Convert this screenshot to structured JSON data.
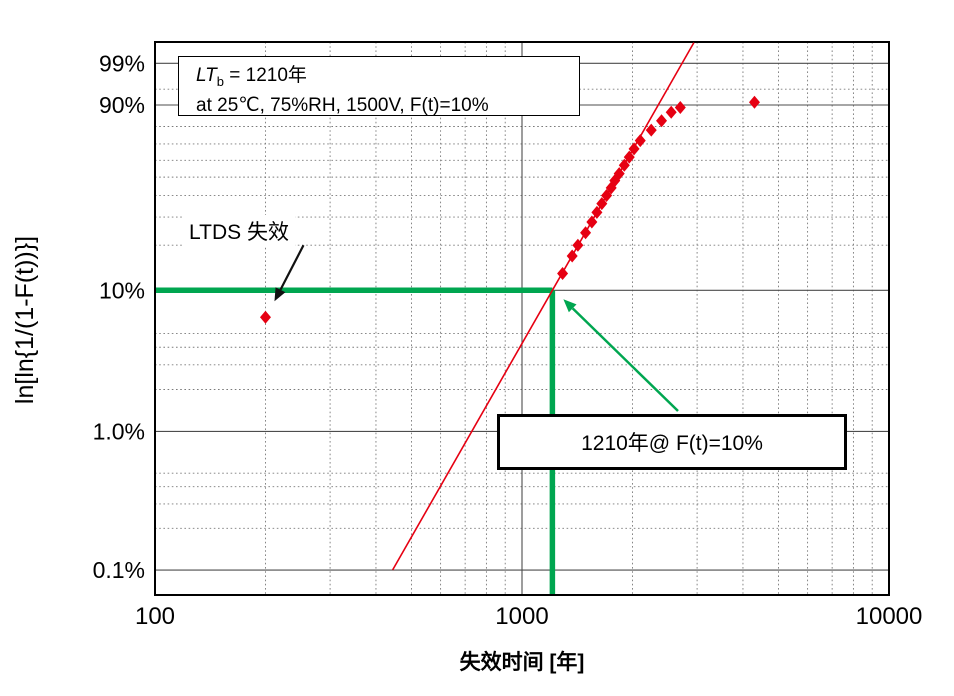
{
  "chart_data": {
    "type": "scatter",
    "title": "",
    "x_axis": {
      "label": "失效时间 [年]",
      "scale": "log",
      "min": 100,
      "max": 10000,
      "major_ticks": [
        100,
        1000,
        10000
      ],
      "tick_labels": [
        "100",
        "1000",
        "10000"
      ],
      "minor_gridlines": [
        200,
        300,
        400,
        500,
        600,
        700,
        800,
        900,
        2000,
        3000,
        4000,
        5000,
        6000,
        7000,
        8000,
        9000
      ]
    },
    "y_axis": {
      "label": "ln[ln{1/(1-F(t))}]",
      "scale": "weibull-percent",
      "render_min_percent": 0.066,
      "render_max_percent": 99.86,
      "major_ticks_percent": [
        99,
        90,
        10,
        1.0,
        0.1
      ],
      "tick_labels": [
        "99%",
        "90%",
        "10%",
        "1.0%",
        "0.1%"
      ],
      "minor_gridlines_percent": [
        95,
        80,
        70,
        60,
        50,
        40,
        30,
        20,
        5,
        4,
        3,
        2,
        0.5,
        0.4,
        0.3,
        0.2
      ]
    },
    "series": [
      {
        "name": "LTDS-failure-point",
        "marker": "diamond",
        "color": "#e60012",
        "points": [
          [
            200,
            6.5
          ]
        ]
      },
      {
        "name": "failure-data",
        "marker": "diamond",
        "color": "#e60012",
        "points": [
          [
            1290,
            13
          ],
          [
            1370,
            17
          ],
          [
            1420,
            20
          ],
          [
            1490,
            24
          ],
          [
            1550,
            28
          ],
          [
            1600,
            32
          ],
          [
            1650,
            36
          ],
          [
            1700,
            40
          ],
          [
            1750,
            44
          ],
          [
            1790,
            48
          ],
          [
            1840,
            52
          ],
          [
            1900,
            57
          ],
          [
            1960,
            62
          ],
          [
            2020,
            67
          ],
          [
            2100,
            72
          ],
          [
            2250,
            78
          ],
          [
            2400,
            83
          ],
          [
            2550,
            87
          ],
          [
            2700,
            89
          ],
          [
            4300,
            91
          ]
        ]
      }
    ],
    "fit_line": {
      "color": "#e60012",
      "x1_years": 444,
      "F1_percent": 0.1,
      "x2_years": 2940,
      "F2_percent": 99.85
    },
    "reference": {
      "x_years": 1210,
      "F_percent": 10,
      "color": "#00a650"
    },
    "grid": "on",
    "legend": "none"
  },
  "annotations": {
    "info_box": {
      "line1_italic": "LT",
      "line1_sub": "b",
      "line1_rest": " = 1210年",
      "line2": "at 25℃, 75%RH, 1500V, F(t)=10%"
    },
    "ltds_label": "LTDS 失效",
    "callout": "1210年@ F(t)=10%"
  }
}
